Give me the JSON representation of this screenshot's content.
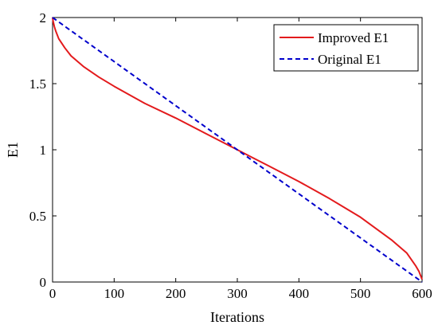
{
  "chart_data": {
    "type": "line",
    "title": "",
    "xlabel": "Iterations",
    "ylabel": "E1",
    "xlim": [
      0,
      600
    ],
    "ylim": [
      0,
      2
    ],
    "xticks": [
      0,
      100,
      200,
      300,
      400,
      500,
      600
    ],
    "yticks": [
      0,
      0.5,
      1,
      1.5,
      2
    ],
    "ytick_labels": [
      "0",
      "0.5",
      "1",
      "1.5",
      "2"
    ],
    "grid": false,
    "legend_position": "top-right",
    "series": [
      {
        "name": "Improved E1",
        "color": "#e31a1c",
        "line_style": "solid",
        "x": [
          0,
          1,
          3,
          5,
          10,
          20,
          30,
          50,
          75,
          100,
          150,
          200,
          250,
          300,
          325,
          350,
          400,
          450,
          500,
          550,
          575,
          590,
          595,
          600
        ],
        "y": [
          2.0,
          1.97,
          1.93,
          1.9,
          1.84,
          1.77,
          1.71,
          1.63,
          1.55,
          1.48,
          1.35,
          1.24,
          1.12,
          1.0,
          0.94,
          0.88,
          0.76,
          0.63,
          0.49,
          0.32,
          0.22,
          0.12,
          0.08,
          0.02
        ]
      },
      {
        "name": "Original E1",
        "color": "#0000cc",
        "line_style": "dashed",
        "x": [
          0,
          600
        ],
        "y": [
          2.0,
          0.0
        ]
      }
    ]
  }
}
